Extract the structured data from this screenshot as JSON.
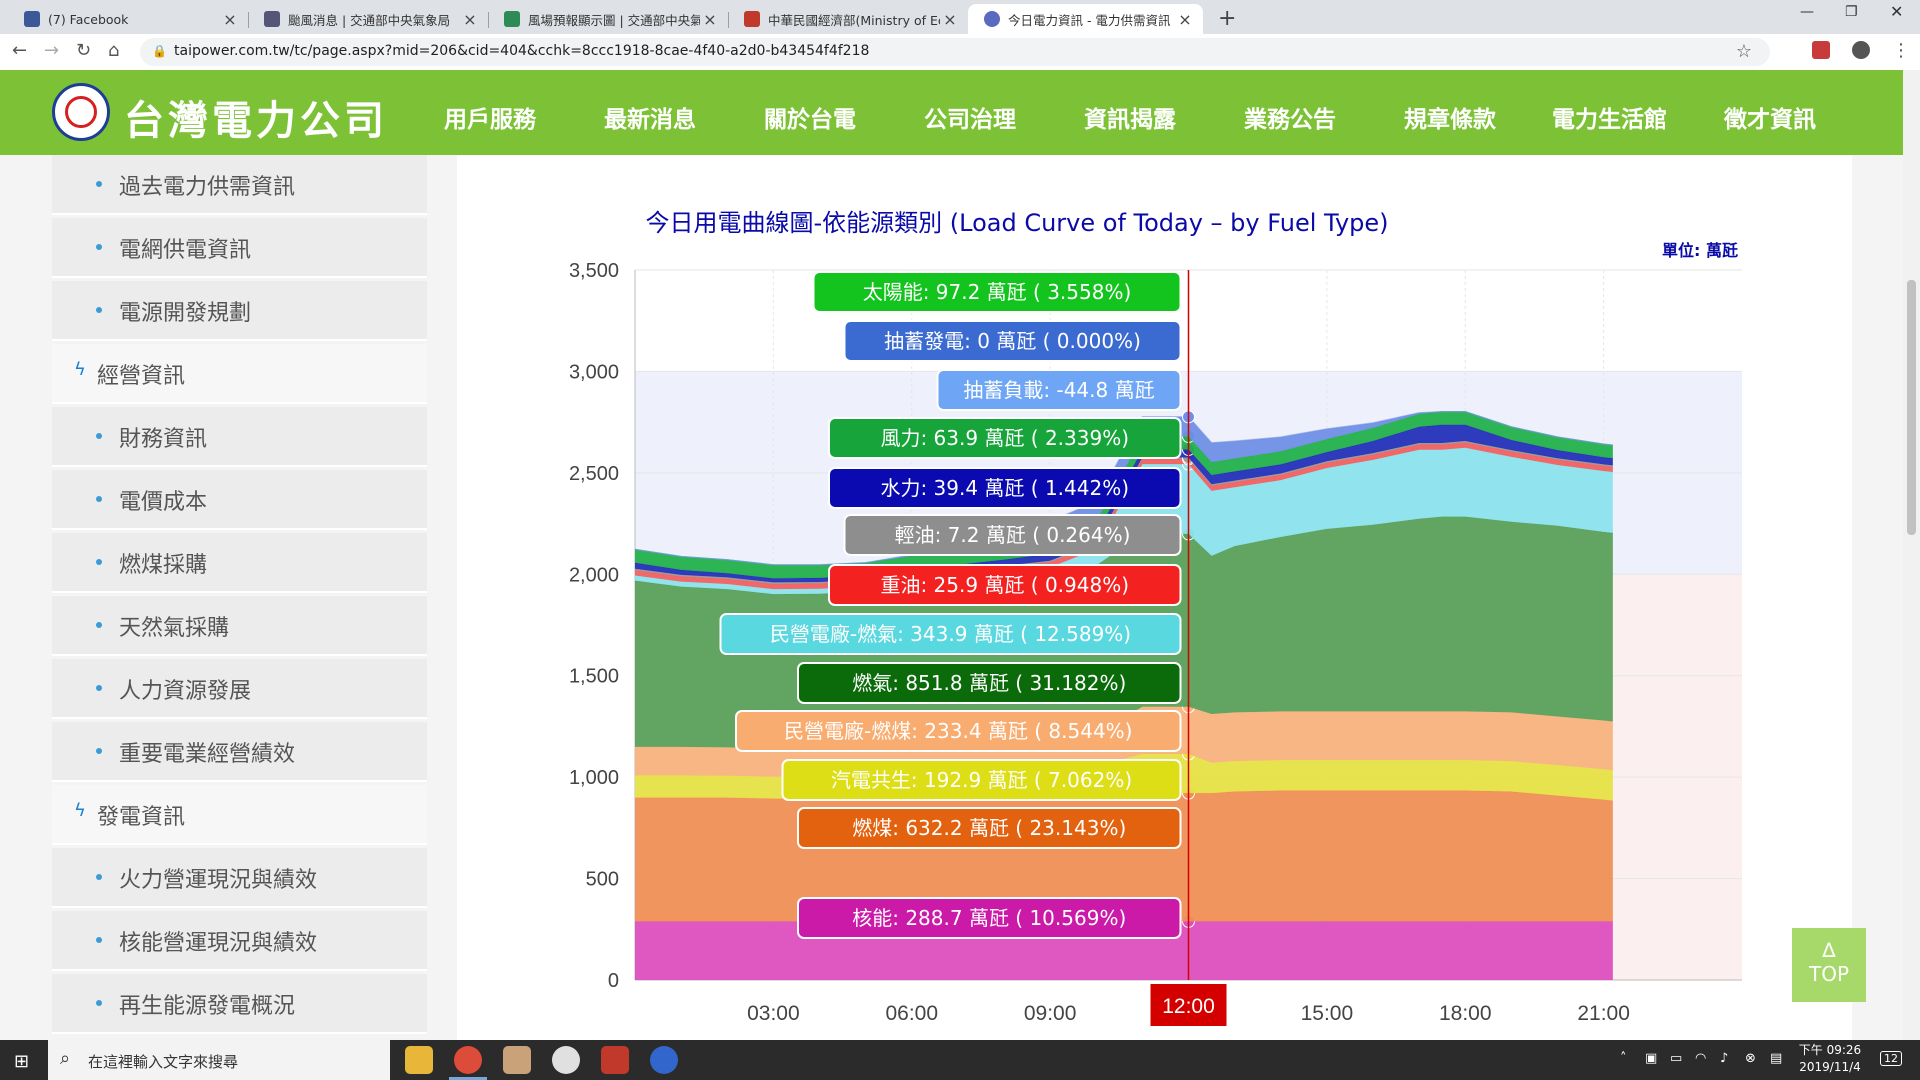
{
  "browser": {
    "tabs": [
      {
        "title": "(7) Facebook",
        "color": "#3b5998"
      },
      {
        "title": "颱風消息 | 交通部中央氣象局",
        "color": "#555577"
      },
      {
        "title": "風場預報顯示圖 | 交通部中央氣",
        "color": "#2e8b57"
      },
      {
        "title": "中華民國經濟部(Ministry of Eco",
        "color": "#c0392b"
      },
      {
        "title": "今日電力資訊 - 電力供需資訊 - 對",
        "color": "#5a6abf"
      }
    ],
    "url": "taipower.com.tw/tc/page.aspx?mid=206&cid=404&cchk=8ccc1918-8cae-4f40-a2d0-b43454f4f218"
  },
  "site": {
    "logo_text": "台灣電力公司",
    "nav": [
      "用戶服務",
      "最新消息",
      "關於台電",
      "公司治理",
      "資訊揭露",
      "業務公告",
      "規章條款",
      "電力生活館",
      "徵才資訊"
    ],
    "active_nav": "資訊揭露"
  },
  "sidebar": {
    "items": [
      {
        "label": "過去電力供需資訊",
        "type": "sub"
      },
      {
        "label": "電網供電資訊",
        "type": "sub"
      },
      {
        "label": "電源開發規劃",
        "type": "sub"
      },
      {
        "label": "經營資訊",
        "type": "cat"
      },
      {
        "label": "財務資訊",
        "type": "sub"
      },
      {
        "label": "電價成本",
        "type": "sub"
      },
      {
        "label": "燃煤採購",
        "type": "sub"
      },
      {
        "label": "天然氣採購",
        "type": "sub"
      },
      {
        "label": "人力資源發展",
        "type": "sub"
      },
      {
        "label": "重要電業經營績效",
        "type": "sub"
      },
      {
        "label": "發電資訊",
        "type": "cat"
      },
      {
        "label": "火力營運現況與績效",
        "type": "sub"
      },
      {
        "label": "核能營運現況與績效",
        "type": "sub"
      },
      {
        "label": "再生能源發電概況",
        "type": "sub"
      }
    ]
  },
  "chart_data": {
    "type": "area",
    "title": "今日用電曲線圖-依能源類別 (Load Curve of Today – by Fuel Type)",
    "unit_label": "單位: 萬瓩",
    "ylim": [
      0,
      3500
    ],
    "yticks": [
      0,
      500,
      1000,
      1500,
      2000,
      2500,
      3000,
      3500
    ],
    "ytick_labels": [
      "0",
      "500",
      "1,000",
      "1,500",
      "2,000",
      "2,500",
      "3,000",
      "3,500"
    ],
    "xticks": [
      "03:00",
      "06:00",
      "09:00",
      "12:00",
      "15:00",
      "18:00",
      "21:00"
    ],
    "xlim_hours": [
      0,
      24
    ],
    "data_end_hour": 21.2,
    "cursor_hour": 12.0,
    "cursor_label": "12:00",
    "x": [
      0,
      1,
      2,
      3,
      4,
      5,
      6,
      7,
      8,
      9,
      10,
      11,
      11.8,
      12,
      12.5,
      13,
      14,
      15,
      16,
      17,
      17.5,
      18,
      19,
      20,
      21,
      21.2
    ],
    "series": [
      {
        "name": "核能",
        "color": "#dd4fbf",
        "values": [
          289,
          289,
          289,
          289,
          289,
          289,
          289,
          289,
          289,
          289,
          289,
          289,
          289,
          289,
          289,
          289,
          289,
          289,
          289,
          289,
          289,
          289,
          289,
          289,
          289,
          289
        ]
      },
      {
        "name": "燃煤",
        "color": "#ef8f55",
        "values": [
          610,
          610,
          610,
          605,
          605,
          605,
          610,
          615,
          620,
          625,
          630,
          632,
          632,
          632,
          632,
          640,
          645,
          645,
          645,
          645,
          645,
          645,
          640,
          620,
          600,
          595
        ]
      },
      {
        "name": "汽電共生",
        "color": "#e6e246",
        "values": [
          110,
          110,
          108,
          108,
          110,
          110,
          115,
          120,
          125,
          130,
          135,
          193,
          193,
          193,
          150,
          150,
          150,
          150,
          150,
          150,
          150,
          150,
          150,
          150,
          150,
          150
        ]
      },
      {
        "name": "民營電廠-燃煤",
        "color": "#f9b27e",
        "values": [
          140,
          140,
          140,
          140,
          140,
          140,
          140,
          145,
          150,
          155,
          160,
          233,
          233,
          233,
          240,
          240,
          240,
          240,
          240,
          240,
          240,
          240,
          240,
          240,
          240,
          240
        ]
      },
      {
        "name": "燃氣",
        "color": "#5aa05a",
        "values": [
          820,
          790,
          780,
          760,
          760,
          770,
          790,
          790,
          800,
          810,
          830,
          852,
          852,
          852,
          780,
          820,
          860,
          900,
          920,
          950,
          960,
          960,
          940,
          940,
          930,
          930
        ]
      },
      {
        "name": "民營電廠-燃氣",
        "color": "#8be3ec",
        "values": [
          25,
          25,
          25,
          25,
          25,
          25,
          25,
          25,
          25,
          25,
          80,
          344,
          344,
          344,
          320,
          290,
          280,
          300,
          320,
          340,
          330,
          340,
          320,
          300,
          300,
          300
        ]
      },
      {
        "name": "重油",
        "color": "#f06060",
        "values": [
          26,
          26,
          26,
          26,
          26,
          26,
          26,
          26,
          26,
          26,
          26,
          26,
          26,
          26,
          26,
          26,
          26,
          26,
          26,
          26,
          26,
          26,
          26,
          26,
          26,
          26
        ]
      },
      {
        "name": "輕油",
        "color": "#9a9a9a",
        "values": [
          7,
          7,
          7,
          7,
          7,
          7,
          7,
          7,
          7,
          7,
          7,
          7,
          7,
          7,
          7,
          7,
          7,
          7,
          7,
          7,
          7,
          7,
          7,
          7,
          7,
          7
        ]
      },
      {
        "name": "水力",
        "color": "#2230b8",
        "values": [
          30,
          25,
          20,
          20,
          20,
          20,
          25,
          30,
          30,
          35,
          39,
          39,
          39,
          39,
          45,
          45,
          45,
          45,
          60,
          80,
          90,
          80,
          50,
          40,
          35,
          35
        ]
      },
      {
        "name": "風力",
        "color": "#22b14c",
        "values": [
          65,
          65,
          66,
          66,
          64,
          64,
          64,
          64,
          64,
          64,
          64,
          64,
          64,
          64,
          64,
          64,
          64,
          64,
          64,
          64,
          64,
          64,
          64,
          64,
          64,
          64
        ]
      },
      {
        "name": "太陽能",
        "color": "#6f8fe6",
        "values": [
          0,
          0,
          0,
          0,
          0,
          0,
          5,
          30,
          70,
          95,
          97,
          97,
          97,
          97,
          95,
          85,
          70,
          50,
          25,
          5,
          0,
          0,
          0,
          0,
          0,
          0
        ]
      }
    ],
    "tooltip": [
      {
        "text": "太陽能: 97.2 萬瓩 ( 3.558%)",
        "color": "#14c41e"
      },
      {
        "text": "抽蓄發電: 0 萬瓩 ( 0.000%)",
        "color": "#3b6ad1"
      },
      {
        "text": "抽蓄負載: -44.8 萬瓩",
        "color": "#6ea6f5"
      },
      {
        "text": "風力: 63.9 萬瓩 ( 2.339%)",
        "color": "#17a53b"
      },
      {
        "text": "水力: 39.4 萬瓩 ( 1.442%)",
        "color": "#0a0ab0"
      },
      {
        "text": "輕油: 7.2 萬瓩 ( 0.264%)",
        "color": "#8e8e8e"
      },
      {
        "text": "重油: 25.9 萬瓩 ( 0.948%)",
        "color": "#f42121"
      },
      {
        "text": "民營電廠-燃氣: 343.9 萬瓩 ( 12.589%)",
        "color": "#5ad8df"
      },
      {
        "text": "燃氣: 851.8 萬瓩 ( 31.182%)",
        "color": "#0b6b0b"
      },
      {
        "text": "民營電廠-燃煤: 233.4 萬瓩 ( 8.544%)",
        "color": "#f8ac6f"
      },
      {
        "text": "汽電共生: 192.9 萬瓩 ( 7.062%)",
        "color": "#dede16"
      },
      {
        "text": "燃煤: 632.2 萬瓩 ( 23.143%)",
        "color": "#e2620f"
      },
      {
        "text": "核能: 288.7 萬瓩 ( 10.569%)",
        "color": "#cc1aa8"
      }
    ]
  },
  "top_button": {
    "arrow": "∆",
    "label": "TOP"
  },
  "taskbar": {
    "search_placeholder": "在這裡輸入文字來搜尋",
    "time": "下午 09:26",
    "date": "2019/11/4",
    "notif": "12"
  }
}
